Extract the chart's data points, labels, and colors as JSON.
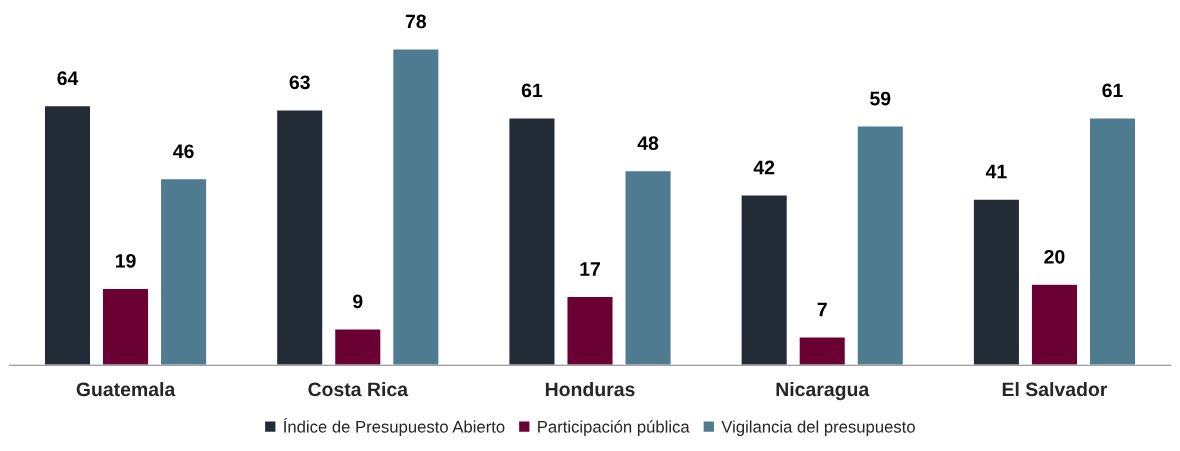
{
  "chart_data": {
    "type": "bar",
    "categories": [
      "Guatemala",
      "Costa Rica",
      "Honduras",
      "Nicaragua",
      "El Salvador"
    ],
    "series": [
      {
        "name": "Índice de Presupuesto Abierto",
        "color": "#232b36",
        "values": [
          64,
          63,
          61,
          42,
          41
        ]
      },
      {
        "name": "Participación pública",
        "color": "#6b0033",
        "values": [
          19,
          9,
          17,
          7,
          20
        ]
      },
      {
        "name": "Vigilancia del presupuesto",
        "color": "#4f7b91",
        "values": [
          46,
          78,
          48,
          59,
          61
        ]
      }
    ],
    "data_labels": true,
    "grid": false,
    "legend": "bottom",
    "tick_labels": "x"
  }
}
